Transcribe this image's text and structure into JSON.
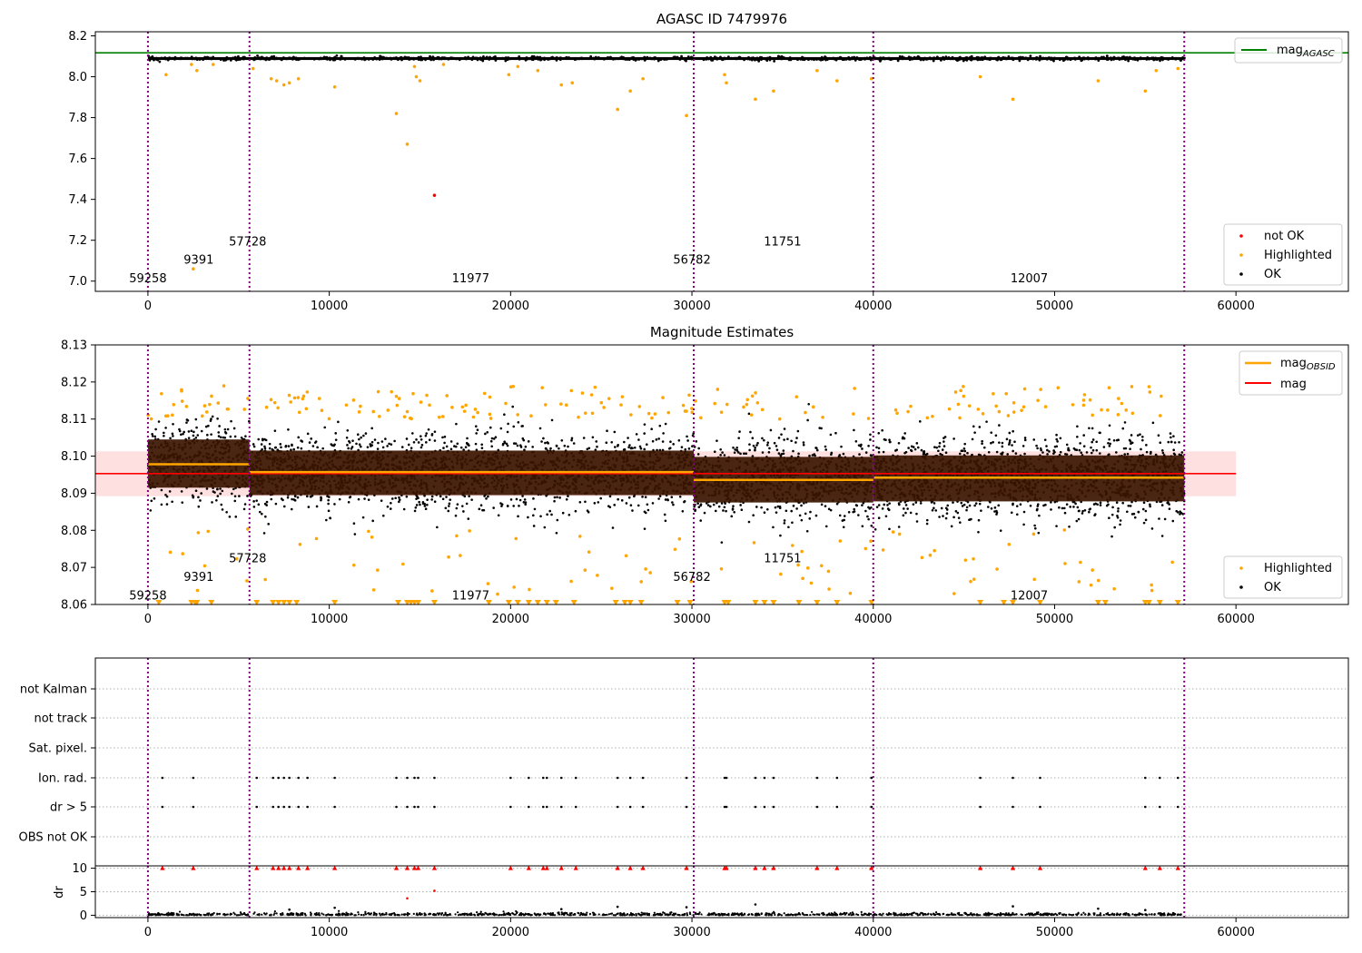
{
  "chart_data": [
    {
      "type": "scatter",
      "title": "AGASC ID 7479976",
      "xlabel": "",
      "ylabel": "",
      "xlim": [
        -2900,
        66200
      ],
      "ylim": [
        6.95,
        8.22
      ],
      "xticks": [
        "0",
        "10000",
        "20000",
        "30000",
        "40000",
        "50000",
        "60000"
      ],
      "yticks": [
        "7.0",
        "7.2",
        "7.4",
        "7.6",
        "7.8",
        "8.0",
        "8.2"
      ],
      "grid": false,
      "legend_upper": {
        "location": "upper-right",
        "entries": [
          "mag_AGASC"
        ]
      },
      "legend_lower": {
        "location": "lower-right",
        "entries": [
          "not OK",
          "Highlighted",
          "OK"
        ]
      },
      "lines": [
        {
          "name": "mag_AGASC",
          "color": "#008000",
          "y": 8.117,
          "x": [
            -2900,
            66200
          ]
        }
      ],
      "ok_band": {
        "x": [
          0,
          57200
        ],
        "y": [
          8.082,
          8.096
        ]
      },
      "highlighted_points": [
        [
          1000,
          8.01
        ],
        [
          2400,
          8.06
        ],
        [
          2500,
          7.06
        ],
        [
          2700,
          8.03
        ],
        [
          3600,
          8.06
        ],
        [
          5800,
          8.04
        ],
        [
          6800,
          7.99
        ],
        [
          7100,
          7.98
        ],
        [
          7500,
          7.96
        ],
        [
          7800,
          7.97
        ],
        [
          8300,
          7.99
        ],
        [
          10300,
          7.95
        ],
        [
          13700,
          7.82
        ],
        [
          14300,
          7.67
        ],
        [
          14700,
          8.05
        ],
        [
          14800,
          8.0
        ],
        [
          15000,
          7.98
        ],
        [
          16300,
          8.06
        ],
        [
          19900,
          8.01
        ],
        [
          20400,
          8.05
        ],
        [
          21500,
          8.03
        ],
        [
          22800,
          7.96
        ],
        [
          23400,
          7.97
        ],
        [
          25900,
          7.84
        ],
        [
          26600,
          7.93
        ],
        [
          27300,
          7.99
        ],
        [
          29700,
          7.81
        ],
        [
          31800,
          8.01
        ],
        [
          31900,
          7.97
        ],
        [
          33500,
          7.89
        ],
        [
          34500,
          7.93
        ],
        [
          36900,
          8.03
        ],
        [
          38000,
          7.98
        ],
        [
          39900,
          7.99
        ],
        [
          45900,
          8.0
        ],
        [
          47700,
          7.89
        ],
        [
          52400,
          7.98
        ],
        [
          55000,
          7.93
        ],
        [
          55600,
          8.03
        ],
        [
          56800,
          8.04
        ]
      ],
      "not_ok_points": [
        [
          15800,
          7.42
        ]
      ],
      "obsid_boundaries": [
        0,
        5600,
        30100,
        40000,
        57150
      ],
      "obsid_labels": [
        {
          "text": "59258",
          "x": 0,
          "y": 7.015
        },
        {
          "text": "9391",
          "x": 2800,
          "y": 7.105
        },
        {
          "text": "57728",
          "x": 5500,
          "y": 7.195
        },
        {
          "text": "11977",
          "x": 17800,
          "y": 7.015
        },
        {
          "text": "56782",
          "x": 30000,
          "y": 7.105
        },
        {
          "text": "11751",
          "x": 35000,
          "y": 7.195
        },
        {
          "text": "12007",
          "x": 48600,
          "y": 7.015
        }
      ]
    },
    {
      "type": "scatter",
      "title": "Magnitude Estimates",
      "xlabel": "",
      "ylabel": "",
      "xlim": [
        -2900,
        66200
      ],
      "ylim": [
        8.06,
        8.13
      ],
      "xticks": [
        "0",
        "10000",
        "20000",
        "30000",
        "40000",
        "50000",
        "60000"
      ],
      "yticks": [
        "8.06",
        "8.07",
        "8.08",
        "8.09",
        "8.10",
        "8.11",
        "8.12",
        "8.13"
      ],
      "grid": false,
      "legend_upper": {
        "location": "upper-right",
        "entries": [
          "mag_OBSID",
          "mag"
        ]
      },
      "legend_lower": {
        "location": "lower-right",
        "entries": [
          "Highlighted",
          "OK"
        ]
      },
      "mag": {
        "value": 8.0953,
        "band": [
          8.0892,
          8.1013
        ],
        "x": [
          -2900,
          60000
        ],
        "color": "#ff0000"
      },
      "mag_obsid": [
        {
          "x0": 0,
          "x1": 5600,
          "y": 8.0978,
          "band": [
            8.0915,
            8.1045
          ]
        },
        {
          "x0": 5600,
          "x1": 30100,
          "y": 8.0957,
          "band": [
            8.0895,
            8.1015
          ]
        },
        {
          "x0": 30100,
          "x1": 40000,
          "y": 8.0936,
          "band": [
            8.0875,
            8.0998
          ]
        },
        {
          "x0": 40000,
          "x1": 57150,
          "y": 8.0942,
          "band": [
            8.0878,
            8.1002
          ]
        }
      ],
      "ok_cloud": [
        {
          "x0": 0,
          "x1": 5600,
          "center": 8.0978,
          "spread": 0.012
        },
        {
          "x0": 5600,
          "x1": 30100,
          "center": 8.0957,
          "spread": 0.011
        },
        {
          "x0": 30100,
          "x1": 40000,
          "center": 8.0936,
          "spread": 0.012
        },
        {
          "x0": 40000,
          "x1": 57150,
          "center": 8.0942,
          "spread": 0.012
        }
      ],
      "obsid_boundaries": [
        0,
        5600,
        30100,
        40000,
        57150
      ],
      "obsid_labels": [
        {
          "text": "59258",
          "x": 0,
          "y": 8.0625
        },
        {
          "text": "9391",
          "x": 2800,
          "y": 8.0675
        },
        {
          "text": "57728",
          "x": 5500,
          "y": 8.0725
        },
        {
          "text": "11977",
          "x": 17800,
          "y": 8.0625
        },
        {
          "text": "56782",
          "x": 30000,
          "y": 8.0675
        },
        {
          "text": "11751",
          "x": 35000,
          "y": 8.0725
        },
        {
          "text": "12007",
          "x": 48600,
          "y": 8.0625
        }
      ]
    },
    {
      "type": "scatter",
      "title": "",
      "xlabel": "",
      "ylabel": "",
      "xlim": [
        -2900,
        66200
      ],
      "categories": [
        "not Kalman",
        "not track",
        "Sat. pixel.",
        "Ion. rad.",
        "dr > 5",
        "OBS not OK"
      ],
      "grid": true,
      "flag_x": [
        800,
        2500,
        6000,
        6900,
        7200,
        7500,
        7800,
        8300,
        8800,
        10300,
        13700,
        14300,
        14700,
        14900,
        15800,
        20000,
        21000,
        21800,
        22000,
        22800,
        23600,
        25900,
        26600,
        27300,
        29700,
        31800,
        31900,
        33500,
        34000,
        34500,
        36900,
        38000,
        39900,
        45900,
        47700,
        49200,
        55000,
        55800,
        56800
      ],
      "obsid_boundaries": [
        0,
        5600,
        30100,
        40000,
        57150
      ]
    },
    {
      "type": "scatter",
      "title": "",
      "xlabel": "",
      "ylabel": "dr",
      "xlim": [
        -2900,
        66200
      ],
      "ylim": [
        -0.5,
        10.5
      ],
      "xticks": [
        "0",
        "10000",
        "20000",
        "30000",
        "40000",
        "50000",
        "60000"
      ],
      "yticks": [
        "0",
        "5",
        "10"
      ],
      "grid": true,
      "flagged_marker_y": 10,
      "outliers": [
        [
          14300,
          3.6
        ],
        [
          15800,
          5.2
        ],
        [
          10300,
          1.6
        ],
        [
          25900,
          1.8
        ],
        [
          33500,
          2.3
        ],
        [
          47700,
          1.9
        ],
        [
          29700,
          1.7
        ],
        [
          52400,
          1.4
        ],
        [
          7800,
          1.2
        ],
        [
          22800,
          1.3
        ],
        [
          55000,
          1.1
        ]
      ],
      "obsid_boundaries": [
        0,
        5600,
        30100,
        40000,
        57150
      ]
    }
  ]
}
